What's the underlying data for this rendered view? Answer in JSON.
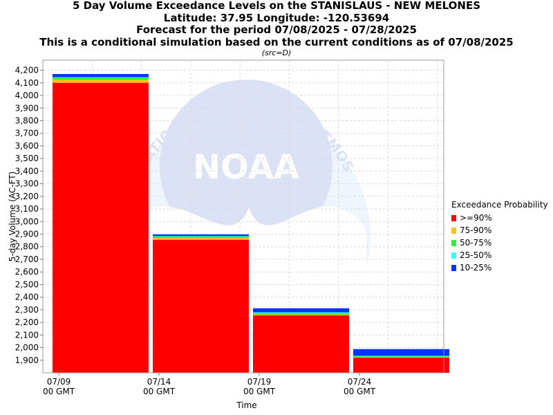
{
  "chart_data": {
    "type": "bar",
    "title_lines": [
      "5 Day Volume Exceedance Levels on the STANISLAUS - NEW MELONES",
      "Latitude: 37.95 Longitude: -120.53694",
      "Forecast for the period 07/08/2025 - 07/28/2025",
      "This is a conditional simulation based on the current conditions as of 07/08/2025"
    ],
    "subtitle": "(src=D)",
    "xlabel": "Time",
    "ylabel": "5-day Volume (AC-FT)",
    "x_ticks": [
      {
        "date": "07/09",
        "zone": "00 GMT"
      },
      {
        "date": "07/14",
        "zone": "00 GMT"
      },
      {
        "date": "07/19",
        "zone": "00 GMT"
      },
      {
        "date": "07/24",
        "zone": "00 GMT"
      }
    ],
    "ylim": [
      1800,
      4280
    ],
    "y_ticks": [
      1900,
      2000,
      2100,
      2200,
      2300,
      2400,
      2500,
      2600,
      2700,
      2800,
      2900,
      3000,
      3100,
      3200,
      3300,
      3400,
      3500,
      3600,
      3700,
      3800,
      3900,
      4000,
      4100,
      4200
    ],
    "grid": true,
    "legend_title": "Exceedance Probability",
    "legend_position": "right",
    "categories": [
      "07/09 - 07/14",
      "07/14 - 07/19",
      "07/19 - 07/24",
      "07/24 - 07/28"
    ],
    "series": [
      {
        "name": ">=90%",
        "color": "#ff0000",
        "values": [
          4100,
          2855,
          2255,
          1920
        ]
      },
      {
        "name": "75-90%",
        "color": "#ffc020",
        "values": [
          4125,
          2870,
          2262,
          1925
        ]
      },
      {
        "name": "50-75%",
        "color": "#33ee33",
        "values": [
          4140,
          2880,
          2272,
          1930
        ]
      },
      {
        "name": "25-50%",
        "color": "#33ffff",
        "values": [
          4145,
          2885,
          2280,
          1935
        ]
      },
      {
        "name": "10-25%",
        "color": "#0033ff",
        "values": [
          4170,
          2898,
          2312,
          1988
        ]
      }
    ],
    "watermark": "NOAA",
    "watermark_text": "NATIONAL OCEANIC AND ATMOSPHERIC ADMINISTRATION U.S. DEPARTMENT OF COMMERCE"
  }
}
